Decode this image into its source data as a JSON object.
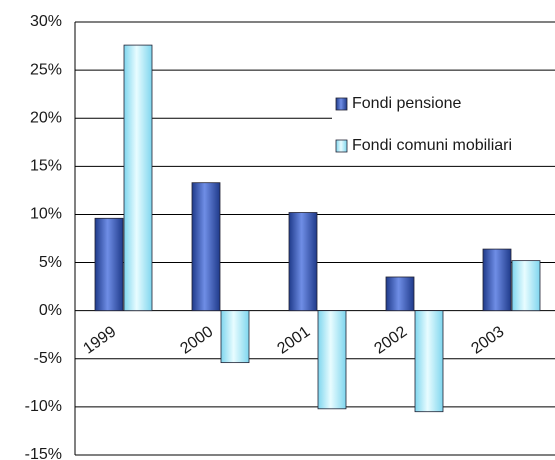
{
  "chart_data": {
    "type": "bar",
    "categories": [
      "1999",
      "2000",
      "2001",
      "2002",
      "2003"
    ],
    "series": [
      {
        "name": "Fondi pensione",
        "color": "#3d5fc4",
        "values": [
          9.6,
          13.3,
          10.2,
          3.5,
          6.4
        ]
      },
      {
        "name": "Fondi comuni mobiliari",
        "color": "#c8f4ff",
        "values": [
          27.6,
          -5.4,
          -10.2,
          -10.5,
          5.2
        ]
      }
    ],
    "ylim": [
      -15,
      30
    ],
    "yticks": [
      {
        "value": -15,
        "label": "-15%"
      },
      {
        "value": -10,
        "label": "-10%"
      },
      {
        "value": -5,
        "label": "-5%"
      },
      {
        "value": 0,
        "label": "0%"
      },
      {
        "value": 5,
        "label": "5%"
      },
      {
        "value": 10,
        "label": "10%"
      },
      {
        "value": 15,
        "label": "15%"
      },
      {
        "value": 20,
        "label": "20%"
      },
      {
        "value": 25,
        "label": "25%"
      },
      {
        "value": 30,
        "label": "30%"
      }
    ],
    "grid": true,
    "legend": "upper right"
  }
}
